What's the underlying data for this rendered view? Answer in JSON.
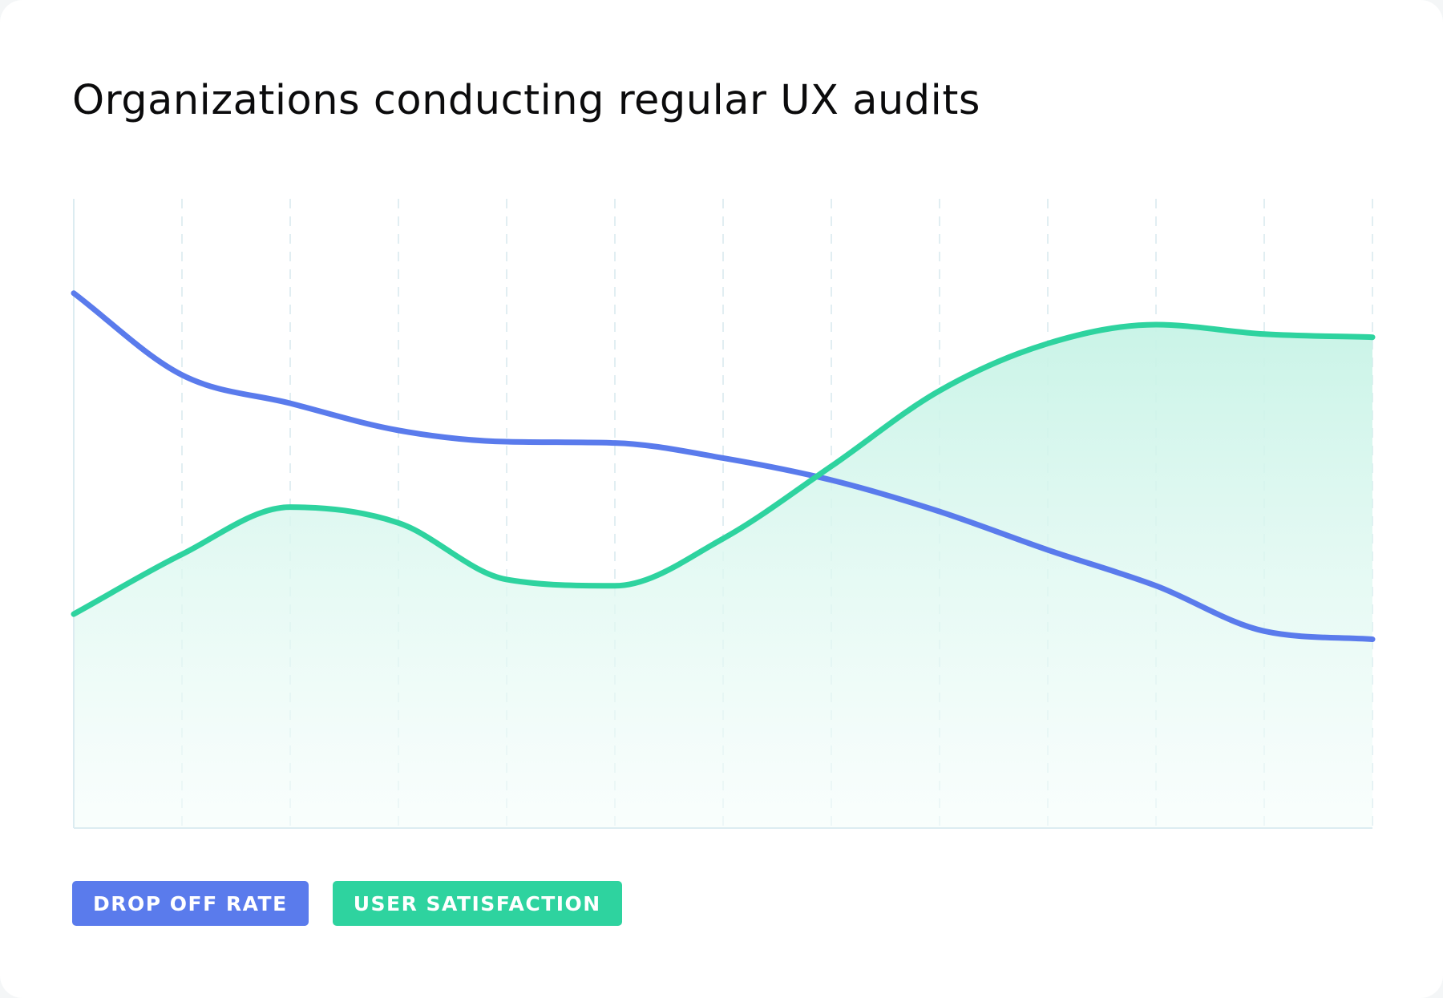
{
  "chart_data": {
    "type": "line",
    "title": "Organizations conducting regular UX audits",
    "xlabel": "",
    "ylabel": "",
    "x": [
      0,
      1,
      2,
      3,
      4,
      5,
      6,
      7,
      8,
      9,
      10,
      11,
      12
    ],
    "xlim": [
      0,
      12
    ],
    "ylim": [
      0,
      100
    ],
    "grid": "vertical-dashed",
    "series": [
      {
        "name": "DROP OFF RATE",
        "color": "#5a7bec",
        "fill": false,
        "values": [
          85,
          72,
          67.5,
          63.2,
          61.4,
          61.2,
          58.8,
          55.3,
          50.3,
          44.2,
          38.5,
          31.3,
          30
        ]
      },
      {
        "name": "USER SATISFACTION",
        "color": "#2ed39f",
        "fill": true,
        "values": [
          34,
          43.5,
          51,
          48.5,
          39.5,
          38.5,
          46,
          57.5,
          69.5,
          77,
          80,
          78.5,
          78
        ]
      }
    ]
  }
}
